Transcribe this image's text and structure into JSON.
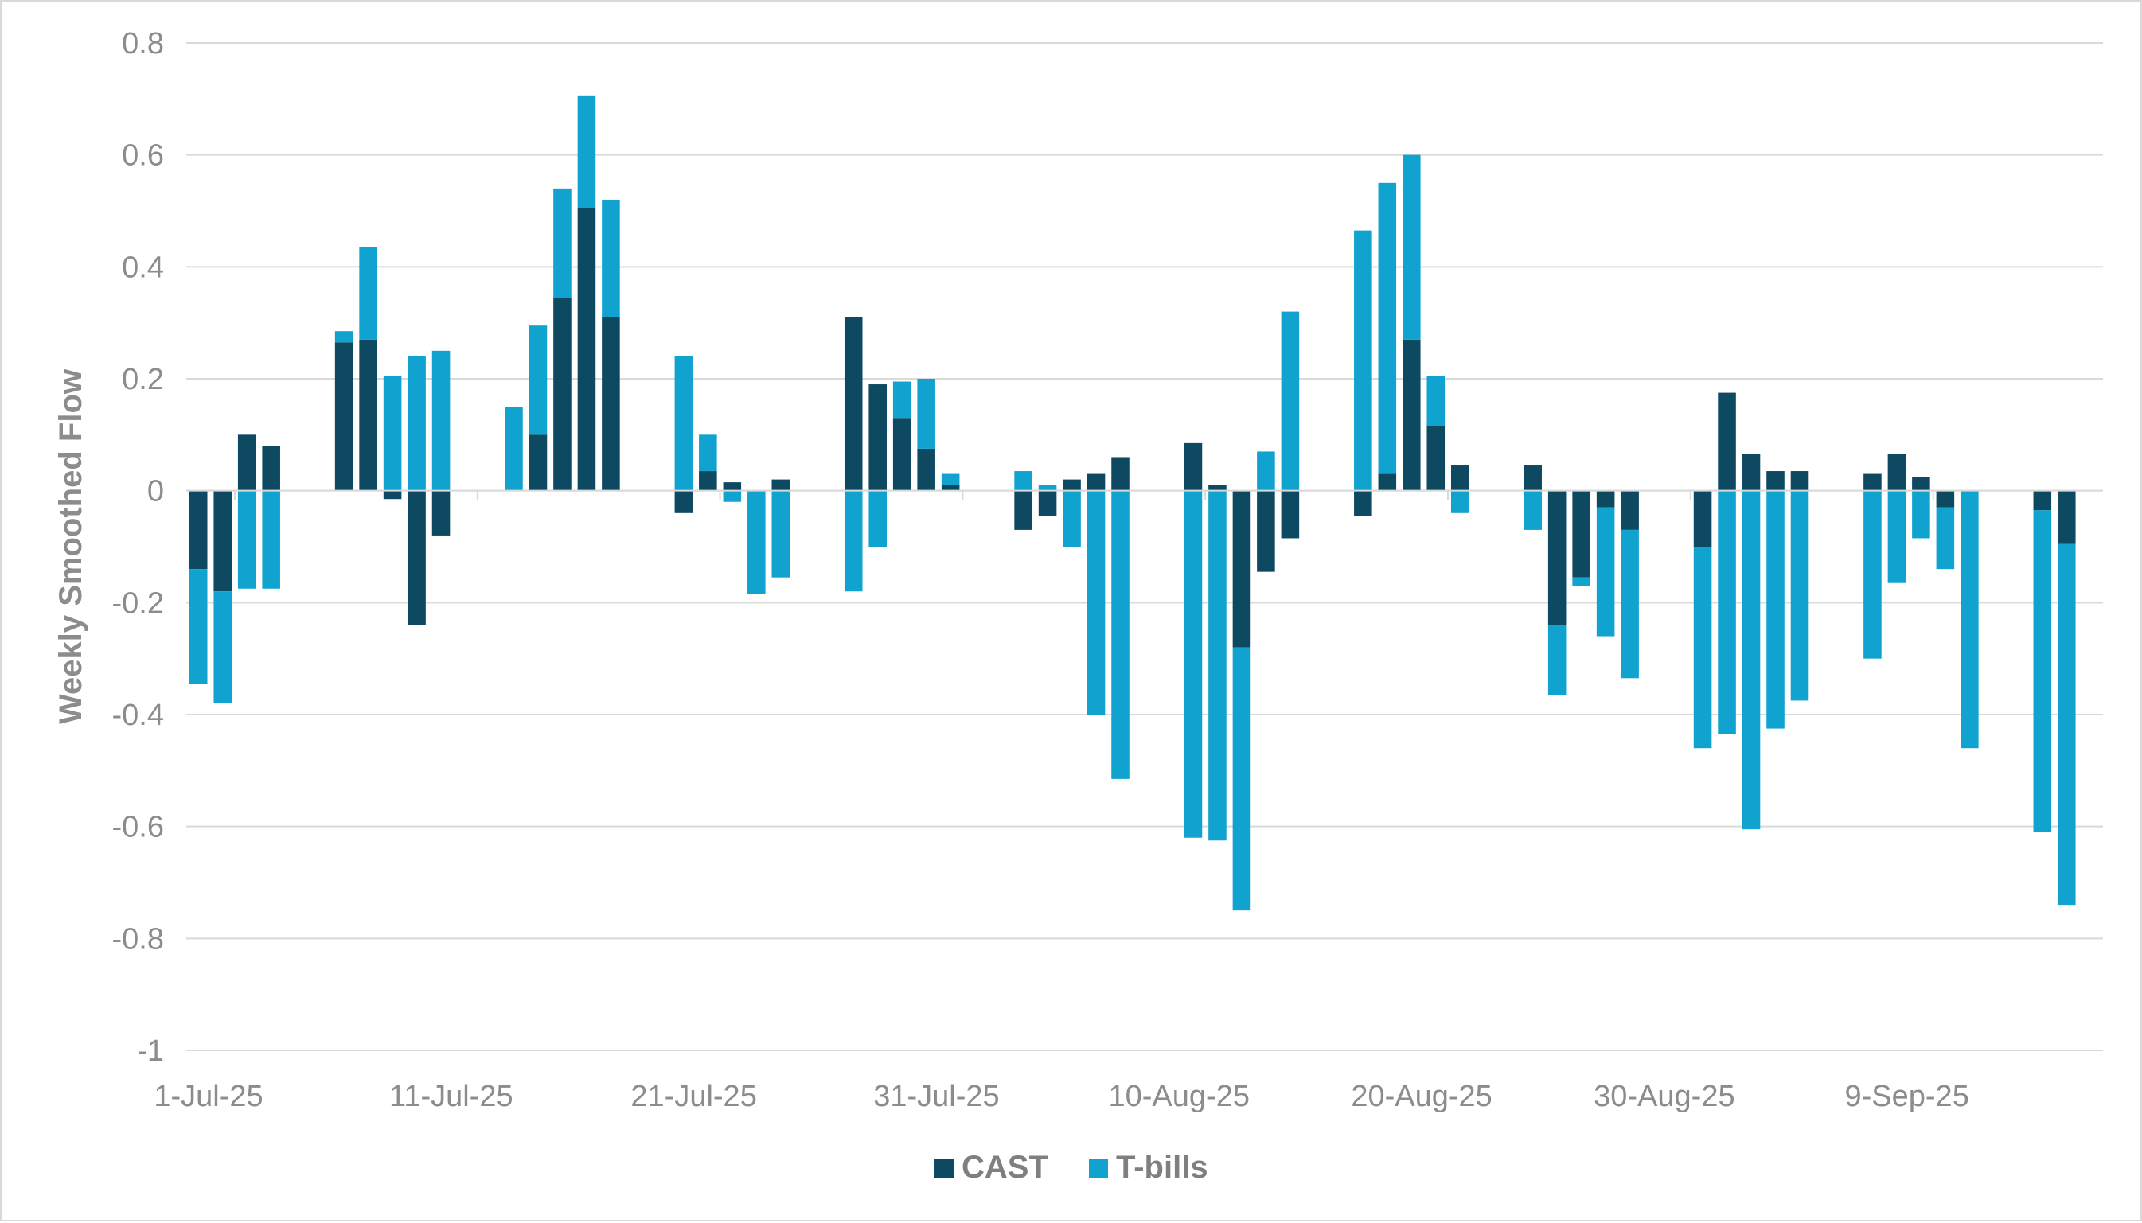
{
  "chart_data": {
    "type": "bar",
    "stacked": true,
    "title": "",
    "xlabel": "",
    "ylabel": "Weekly Smoothed Flow",
    "ylim": [
      -1,
      0.8
    ],
    "yticks": [
      0.8,
      0.6,
      0.4,
      0.2,
      0,
      -0.2,
      -0.4,
      -0.6,
      -0.8,
      -1
    ],
    "ytick_labels": [
      "0.8",
      "0.6",
      "0.4",
      "0.2",
      "0",
      "-0.2",
      "-0.4",
      "-0.6",
      "-0.8",
      "-1"
    ],
    "x_start": "1-Jul-25",
    "x_end": "17-Sep-25",
    "xtick_labels": [
      "1-Jul-25",
      "11-Jul-25",
      "21-Jul-25",
      "31-Jul-25",
      "10-Aug-25",
      "20-Aug-25",
      "30-Aug-25",
      "9-Sep-25"
    ],
    "grid": true,
    "legend_position": "bottom-center",
    "colors": {
      "CAST": "#0d4a61",
      "T-bills": "#11a3cf",
      "grid": "#d9d9d9",
      "axis_text": "#8c8c8c"
    },
    "x": [
      "1-Jul-25",
      "2-Jul-25",
      "3-Jul-25",
      "4-Jul-25",
      "7-Jul-25",
      "8-Jul-25",
      "9-Jul-25",
      "10-Jul-25",
      "11-Jul-25",
      "14-Jul-25",
      "15-Jul-25",
      "16-Jul-25",
      "17-Jul-25",
      "18-Jul-25",
      "21-Jul-25",
      "22-Jul-25",
      "23-Jul-25",
      "24-Jul-25",
      "25-Jul-25",
      "28-Jul-25",
      "29-Jul-25",
      "30-Jul-25",
      "31-Jul-25",
      "1-Aug-25",
      "4-Aug-25",
      "5-Aug-25",
      "6-Aug-25",
      "7-Aug-25",
      "8-Aug-25",
      "11-Aug-25",
      "12-Aug-25",
      "13-Aug-25",
      "14-Aug-25",
      "15-Aug-25",
      "18-Aug-25",
      "19-Aug-25",
      "20-Aug-25",
      "21-Aug-25",
      "22-Aug-25",
      "25-Aug-25",
      "26-Aug-25",
      "27-Aug-25",
      "28-Aug-25",
      "29-Aug-25",
      "1-Sep-25",
      "2-Sep-25",
      "3-Sep-25",
      "4-Sep-25",
      "5-Sep-25",
      "8-Sep-25",
      "9-Sep-25",
      "10-Sep-25",
      "11-Sep-25",
      "12-Sep-25",
      "15-Sep-25",
      "16-Sep-25"
    ],
    "series": [
      {
        "name": "CAST",
        "values": [
          -0.14,
          -0.18,
          0.1,
          0.08,
          0.265,
          0.27,
          -0.015,
          -0.24,
          -0.08,
          0,
          0.1,
          0.345,
          0.505,
          0.31,
          -0.04,
          0.035,
          0.015,
          0,
          0.02,
          0.31,
          0.19,
          0.13,
          0.075,
          0.01,
          -0.07,
          -0.045,
          0.02,
          0.03,
          0.06,
          0.085,
          0.01,
          -0.28,
          -0.145,
          -0.085,
          -0.045,
          0.03,
          0.27,
          0.115,
          0.045,
          0.045,
          -0.24,
          -0.155,
          -0.03,
          -0.07,
          -0.1,
          0.175,
          0.065,
          0.035,
          0.035,
          0.03,
          0.065,
          0.025,
          -0.03,
          0,
          -0.035,
          -0.095
        ]
      },
      {
        "name": "T-bills",
        "values": [
          -0.205,
          -0.2,
          -0.175,
          -0.175,
          0.02,
          0.165,
          0.205,
          0.24,
          0.25,
          0.15,
          0.195,
          0.195,
          0.2,
          0.21,
          0.24,
          0.065,
          -0.02,
          -0.185,
          -0.155,
          -0.18,
          -0.1,
          0.065,
          0.125,
          0.02,
          0.035,
          0.01,
          -0.1,
          -0.4,
          -0.515,
          -0.62,
          -0.625,
          -0.47,
          0.07,
          0.32,
          0.465,
          0.52,
          0.33,
          0.09,
          -0.04,
          -0.07,
          -0.125,
          -0.015,
          -0.23,
          -0.265,
          -0.36,
          -0.435,
          -0.605,
          -0.425,
          -0.375,
          -0.3,
          -0.165,
          -0.085,
          -0.11,
          -0.46,
          -0.575,
          -0.645
        ]
      }
    ]
  }
}
